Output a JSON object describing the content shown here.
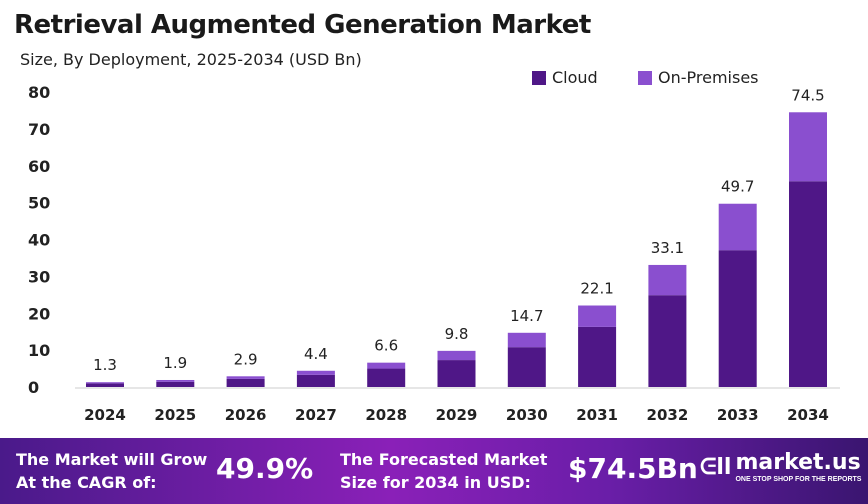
{
  "chart_data": {
    "type": "bar",
    "stacked": true,
    "title": "Retrieval Augmented Generation Market",
    "subtitle": "Size, By Deployment, 2025-2034 (USD Bn)",
    "categories": [
      "2024",
      "2025",
      "2026",
      "2027",
      "2028",
      "2029",
      "2030",
      "2031",
      "2032",
      "2033",
      "2034"
    ],
    "totals": [
      1.3,
      1.9,
      2.9,
      4.4,
      6.6,
      9.8,
      14.7,
      22.1,
      33.1,
      49.7,
      74.5
    ],
    "series": [
      {
        "name": "Cloud",
        "color": "#4f1787",
        "values": [
          1.0,
          1.4,
          2.2,
          3.3,
          5.0,
          7.3,
          10.8,
          16.3,
          24.9,
          37.1,
          55.8
        ]
      },
      {
        "name": "On-Premises",
        "color": "#8a4fcf",
        "values": [
          0.3,
          0.5,
          0.7,
          1.1,
          1.6,
          2.5,
          3.9,
          5.8,
          8.2,
          12.6,
          18.7
        ]
      }
    ],
    "yticks": [
      0,
      10,
      20,
      30,
      40,
      50,
      60,
      70,
      80
    ],
    "ylim": [
      0,
      80
    ],
    "grid": false,
    "legend": "top-right"
  },
  "footer": {
    "cagr_label_1": "The Market will Grow",
    "cagr_label_2": "At the CAGR of:",
    "cagr_value": "49.9%",
    "forecast_label_1": "The Forecasted Market",
    "forecast_label_2": "Size for 2034 in USD:",
    "forecast_value": "$74.5Bn",
    "logo_text": "market.us",
    "logo_tagline": "ONE STOP SHOP FOR THE REPORTS"
  }
}
